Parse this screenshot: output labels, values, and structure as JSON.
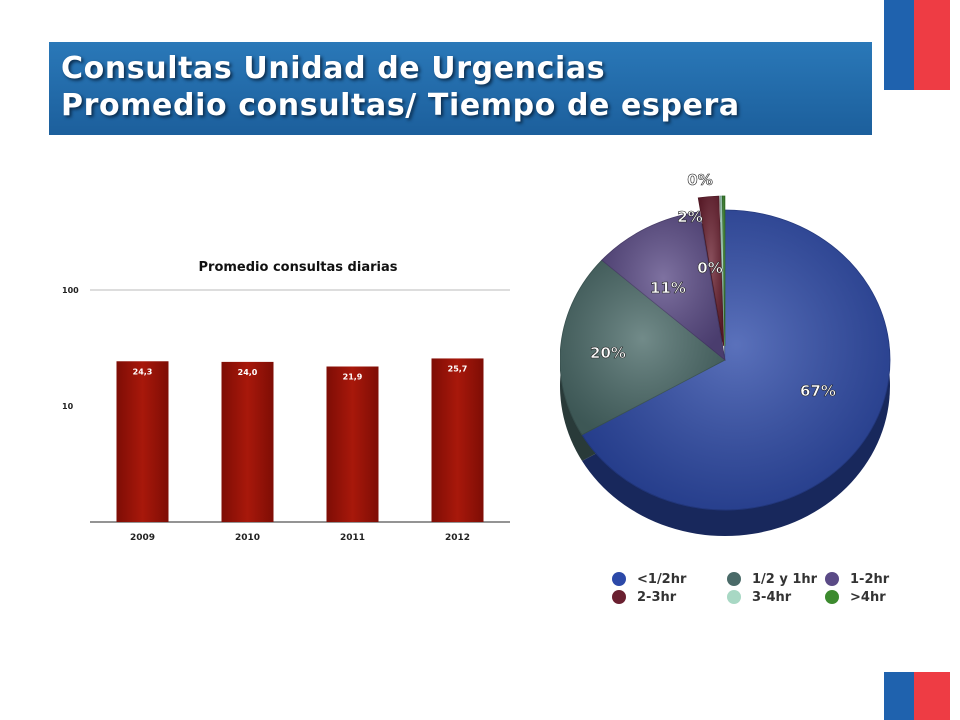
{
  "header": {
    "title_line1": "Consultas Unidad de Urgencias",
    "title_line2": "Promedio consultas/ Tiempo de espera"
  },
  "colors": {
    "flag_blue": "#1f62ae",
    "flag_red": "#ee3c44",
    "bar": "#9c1409",
    "title_bg": "#2270ad"
  },
  "chart_data": [
    {
      "type": "bar",
      "title": "Promedio consultas diarias",
      "categories": [
        "2009",
        "2010",
        "2011",
        "2012"
      ],
      "values": [
        24.3,
        24.0,
        21.9,
        25.7
      ],
      "value_labels": [
        "24,3",
        "24,0",
        "21,9",
        "25,7"
      ],
      "yscale": "log",
      "ylim": [
        1,
        100
      ],
      "yticks": [
        10,
        100
      ],
      "ytick_labels": [
        "10",
        "100"
      ],
      "xlabel": "",
      "ylabel": "",
      "grid": false
    },
    {
      "type": "pie",
      "title": "",
      "labels": [
        "<1/2hr",
        "1/2 y 1hr",
        "1-2hr",
        "2-3hr",
        "3-4hr",
        ">4hr"
      ],
      "values": [
        67,
        20,
        11,
        2,
        0,
        0
      ],
      "value_labels": [
        "67%",
        "20%",
        "11%",
        "2%",
        "0%",
        "0%"
      ],
      "colors": [
        "#2c49a8",
        "#4a6a68",
        "#5a4a86",
        "#6a2030",
        "#a8d8c4",
        "#3c8a2e"
      ],
      "legend_position": "bottom"
    }
  ]
}
